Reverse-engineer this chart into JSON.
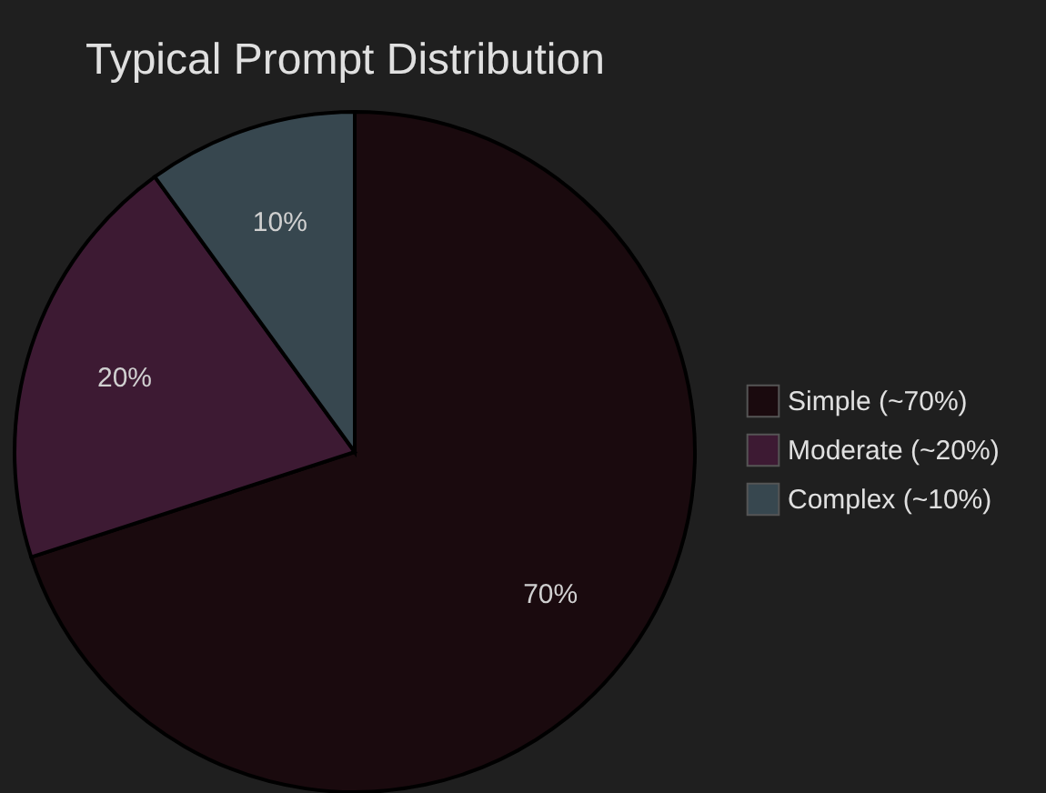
{
  "chart_data": {
    "type": "pie",
    "title": "Typical Prompt Distribution",
    "categories": [
      "Simple (~70%)",
      "Moderate (~20%)",
      "Complex (~10%)"
    ],
    "values": [
      70,
      20,
      10
    ],
    "colors": [
      "#1a0a0e",
      "#3d1a33",
      "#37474f"
    ],
    "value_labels": [
      "70%",
      "20%",
      "10%"
    ],
    "legend": "right"
  }
}
